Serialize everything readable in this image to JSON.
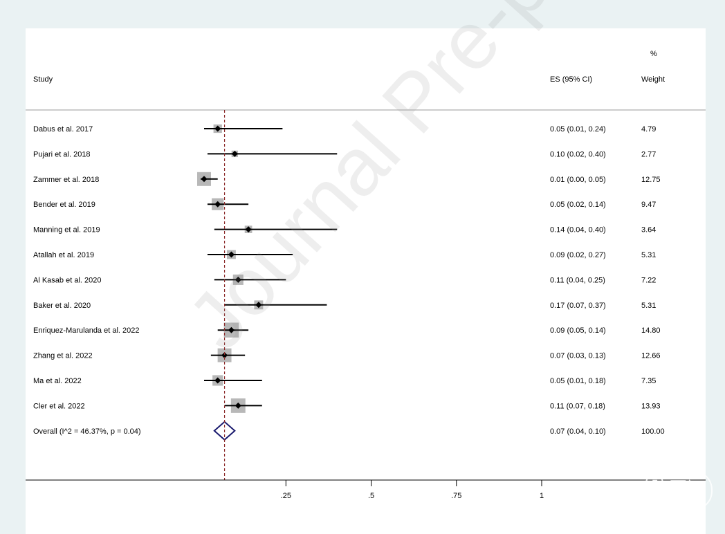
{
  "header": {
    "study": "Study",
    "es": "ES (95% CI)",
    "weight_top": "%",
    "weight": "Weight"
  },
  "watermark": "Journal Pre-proof",
  "logo_text": "脑医汇",
  "chart_data": {
    "type": "forest",
    "studies": [
      {
        "label": "Dabus et al. 2017",
        "es": 0.05,
        "lo": 0.01,
        "hi": 0.24,
        "ci_text": "0.05 (0.01, 0.24)",
        "weight": 4.79,
        "weight_text": "4.79"
      },
      {
        "label": "Pujari et al. 2018",
        "es": 0.1,
        "lo": 0.02,
        "hi": 0.4,
        "ci_text": "0.10 (0.02, 0.40)",
        "weight": 2.77,
        "weight_text": "2.77"
      },
      {
        "label": "Zammer et al. 2018",
        "es": 0.01,
        "lo": 0.0,
        "hi": 0.05,
        "ci_text": "0.01 (0.00, 0.05)",
        "weight": 12.75,
        "weight_text": "12.75"
      },
      {
        "label": "Bender et al. 2019",
        "es": 0.05,
        "lo": 0.02,
        "hi": 0.14,
        "ci_text": "0.05 (0.02, 0.14)",
        "weight": 9.47,
        "weight_text": "9.47"
      },
      {
        "label": "Manning et al. 2019",
        "es": 0.14,
        "lo": 0.04,
        "hi": 0.4,
        "ci_text": "0.14 (0.04, 0.40)",
        "weight": 3.64,
        "weight_text": "3.64"
      },
      {
        "label": "Atallah et al. 2019",
        "es": 0.09,
        "lo": 0.02,
        "hi": 0.27,
        "ci_text": "0.09 (0.02, 0.27)",
        "weight": 5.31,
        "weight_text": "5.31"
      },
      {
        "label": "Al Kasab et al. 2020",
        "es": 0.11,
        "lo": 0.04,
        "hi": 0.25,
        "ci_text": "0.11 (0.04, 0.25)",
        "weight": 7.22,
        "weight_text": "7.22"
      },
      {
        "label": "Baker et al. 2020",
        "es": 0.17,
        "lo": 0.07,
        "hi": 0.37,
        "ci_text": "0.17 (0.07, 0.37)",
        "weight": 5.31,
        "weight_text": "5.31"
      },
      {
        "label": "Enriquez-Marulanda et al. 2022",
        "es": 0.09,
        "lo": 0.05,
        "hi": 0.14,
        "ci_text": "0.09 (0.05, 0.14)",
        "weight": 14.8,
        "weight_text": "14.80"
      },
      {
        "label": "Zhang et al. 2022",
        "es": 0.07,
        "lo": 0.03,
        "hi": 0.13,
        "ci_text": "0.07 (0.03, 0.13)",
        "weight": 12.66,
        "weight_text": "12.66"
      },
      {
        "label": "Ma et al. 2022",
        "es": 0.05,
        "lo": 0.01,
        "hi": 0.18,
        "ci_text": "0.05 (0.01, 0.18)",
        "weight": 7.35,
        "weight_text": "7.35"
      },
      {
        "label": "Cler et al. 2022",
        "es": 0.11,
        "lo": 0.07,
        "hi": 0.18,
        "ci_text": "0.11 (0.07, 0.18)",
        "weight": 13.93,
        "weight_text": "13.93"
      }
    ],
    "overall": {
      "label": "Overall  (I^2 = 46.37%, p = 0.04)",
      "es": 0.07,
      "lo": 0.04,
      "hi": 0.1,
      "ci_text": "0.07 (0.04, 0.10)",
      "weight_text": "100.00"
    },
    "x_ticks": [
      {
        "value": 0.25,
        "label": ".25"
      },
      {
        "value": 0.5,
        "label": ".5"
      },
      {
        "value": 0.75,
        "label": ".75"
      },
      {
        "value": 1,
        "label": "1"
      }
    ],
    "xlim": [
      -0.06,
      1
    ],
    "reference_line": 0.07,
    "colors": {
      "box": "#b8b8b8",
      "overall_diamond": "#1a1a6e",
      "reference_line": "#8b2a2a",
      "panel": "#ffffff",
      "background": "#eaf2f3"
    }
  }
}
